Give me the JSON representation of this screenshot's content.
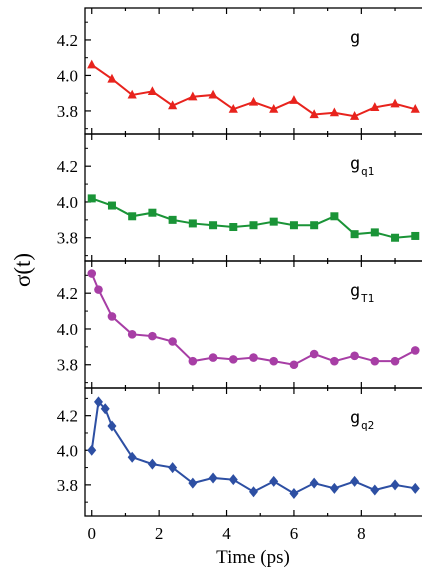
{
  "chart_data": {
    "type": "line",
    "ylabel": "σ(t)",
    "xlabel": "Time (ps)",
    "xlim": [
      -0.2,
      9.8
    ],
    "x_ticks": [
      "0",
      "2",
      "4",
      "6",
      "8"
    ],
    "x_tick_values": [
      0,
      2,
      4,
      6,
      8
    ],
    "grid": false,
    "panels": [
      {
        "label": "g",
        "subscript": "",
        "color": "#e8231d",
        "marker": "triangle",
        "ylim": [
          3.67,
          4.38
        ],
        "y_ticks": [
          "3.8",
          "4.0",
          "4.2"
        ],
        "y_tick_values": [
          3.8,
          4.0,
          4.2
        ],
        "x": [
          0.0,
          0.6,
          1.2,
          1.8,
          2.4,
          3.0,
          3.6,
          4.2,
          4.8,
          5.4,
          6.0,
          6.6,
          7.2,
          7.8,
          8.4,
          9.0,
          9.6
        ],
        "y": [
          4.06,
          3.98,
          3.89,
          3.91,
          3.83,
          3.88,
          3.89,
          3.81,
          3.85,
          3.81,
          3.86,
          3.78,
          3.79,
          3.77,
          3.82,
          3.84,
          3.81
        ]
      },
      {
        "label": "g",
        "subscript": "q1",
        "color": "#1a9437",
        "marker": "square",
        "ylim": [
          3.67,
          4.38
        ],
        "y_ticks": [
          "3.8",
          "4.0",
          "4.2"
        ],
        "y_tick_values": [
          3.8,
          4.0,
          4.2
        ],
        "x": [
          0.0,
          0.6,
          1.2,
          1.8,
          2.4,
          3.0,
          3.6,
          4.2,
          4.8,
          5.4,
          6.0,
          6.6,
          7.2,
          7.8,
          8.4,
          9.0,
          9.6
        ],
        "y": [
          4.02,
          3.98,
          3.92,
          3.94,
          3.9,
          3.88,
          3.87,
          3.86,
          3.87,
          3.89,
          3.87,
          3.87,
          3.92,
          3.82,
          3.83,
          3.8,
          3.81
        ]
      },
      {
        "label": "g",
        "subscript": "T1",
        "color": "#a73ea5",
        "marker": "circle",
        "ylim": [
          3.67,
          4.38
        ],
        "y_ticks": [
          "3.8",
          "4.0",
          "4.2"
        ],
        "y_tick_values": [
          3.8,
          4.0,
          4.2
        ],
        "x": [
          0.0,
          0.2,
          0.6,
          1.2,
          1.8,
          2.4,
          3.0,
          3.6,
          4.2,
          4.8,
          5.4,
          6.0,
          6.6,
          7.2,
          7.8,
          8.4,
          9.0,
          9.6
        ],
        "y": [
          4.31,
          4.22,
          4.07,
          3.97,
          3.96,
          3.93,
          3.82,
          3.84,
          3.83,
          3.84,
          3.82,
          3.8,
          3.86,
          3.82,
          3.85,
          3.82,
          3.82,
          3.88
        ]
      },
      {
        "label": "g",
        "subscript": "q2",
        "color": "#2d4fa3",
        "marker": "diamond",
        "ylim": [
          3.62,
          4.36
        ],
        "y_ticks": [
          "3.8",
          "4.0",
          "4.2"
        ],
        "y_tick_values": [
          3.8,
          4.0,
          4.2
        ],
        "x": [
          0.0,
          0.2,
          0.4,
          0.6,
          1.2,
          1.8,
          2.4,
          3.0,
          3.6,
          4.2,
          4.8,
          5.4,
          6.0,
          6.6,
          7.2,
          7.8,
          8.4,
          9.0,
          9.6
        ],
        "y": [
          4.0,
          4.28,
          4.24,
          4.14,
          3.96,
          3.92,
          3.9,
          3.81,
          3.84,
          3.83,
          3.76,
          3.82,
          3.75,
          3.81,
          3.78,
          3.82,
          3.77,
          3.8,
          3.78
        ]
      }
    ]
  }
}
